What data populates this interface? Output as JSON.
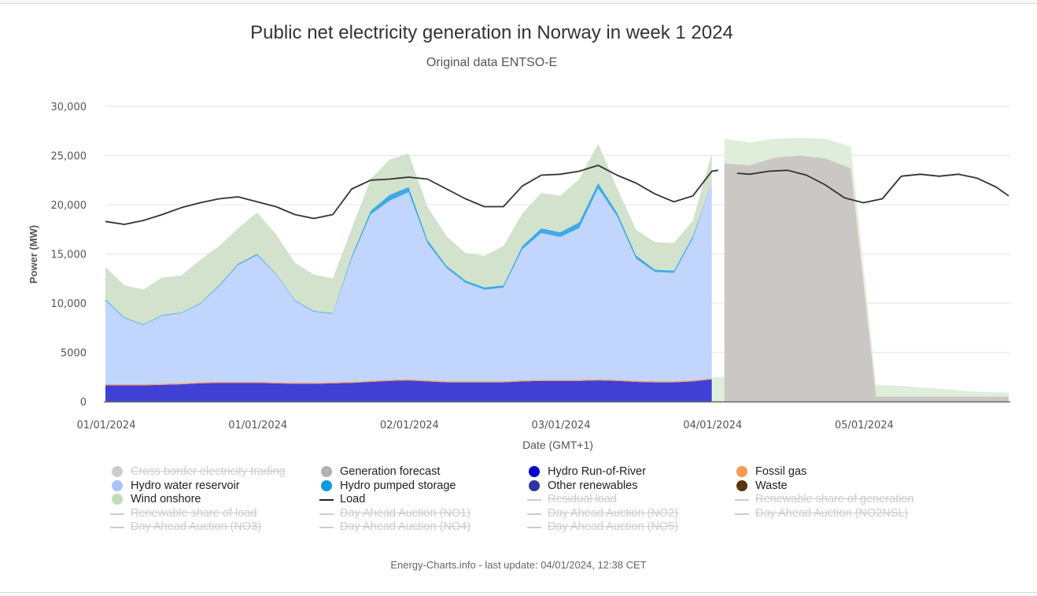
{
  "chart_data": {
    "type": "area",
    "title": "Public net electricity generation in Norway in week 1 2024",
    "subtitle": "Original data ENTSO-E",
    "xlabel": "Date (GMT+1)",
    "ylabel": "Power (MW)",
    "ylim": [
      0,
      30000
    ],
    "yticks": [
      {
        "value": 0,
        "label": "0"
      },
      {
        "value": 5000,
        "label": "5000"
      },
      {
        "value": 10000,
        "label": "10,000"
      },
      {
        "value": 15000,
        "label": "15,000"
      },
      {
        "value": 20000,
        "label": "20,000"
      },
      {
        "value": 25000,
        "label": "25,000"
      },
      {
        "value": 30000,
        "label": "30,000"
      }
    ],
    "x_unit": "hours since start of displayed range",
    "xlim": [
      0,
      143
    ],
    "xticks": [
      {
        "hour": 0,
        "label": "01/01/2024"
      },
      {
        "hour": 24,
        "label": "01/01/2024"
      },
      {
        "hour": 48,
        "label": "02/01/2024"
      },
      {
        "hour": 72,
        "label": "03/01/2024"
      },
      {
        "hour": 96,
        "label": "04/01/2024"
      },
      {
        "hour": 120,
        "label": "05/01/2024"
      }
    ],
    "grid": true,
    "legend_position": "bottom",
    "stacked_actual": {
      "hours": [
        0,
        3,
        6,
        9,
        12,
        15,
        18,
        21,
        24,
        27,
        30,
        33,
        36,
        39,
        42,
        45,
        48,
        51,
        54,
        57,
        60,
        63,
        66,
        69,
        72,
        75,
        78,
        81,
        84,
        87,
        90,
        93,
        96
      ],
      "series": [
        {
          "name": "Hydro Run-of-River",
          "color": "#4040d4",
          "values": [
            1650,
            1650,
            1650,
            1700,
            1750,
            1850,
            1900,
            1900,
            1900,
            1850,
            1800,
            1800,
            1850,
            1900,
            2000,
            2100,
            2150,
            2050,
            1950,
            1950,
            1950,
            1950,
            2050,
            2100,
            2100,
            2100,
            2150,
            2100,
            2000,
            1950,
            1950,
            2050,
            2250
          ]
        },
        {
          "name": "Fossil gas",
          "color": "#f4a470",
          "values": [
            120,
            120,
            120,
            120,
            120,
            120,
            120,
            120,
            120,
            120,
            120,
            120,
            120,
            120,
            120,
            120,
            120,
            120,
            120,
            120,
            120,
            120,
            120,
            120,
            120,
            120,
            120,
            120,
            120,
            120,
            120,
            120,
            120
          ]
        },
        {
          "name": "Hydro water reservoir",
          "color": "#c2d5fc",
          "values": [
            8500,
            6700,
            6000,
            6900,
            7100,
            7950,
            9700,
            11850,
            12850,
            10950,
            8300,
            7200,
            6950,
            12550,
            16900,
            18200,
            19000,
            13900,
            11500,
            10000,
            9300,
            9500,
            13300,
            14900,
            14500,
            15400,
            19400,
            16600,
            12400,
            11100,
            11000,
            14400,
            19900
          ]
        },
        {
          "name": "Hydro pumped storage",
          "color": "#3fa9e6",
          "values": [
            130,
            90,
            70,
            80,
            70,
            80,
            120,
            130,
            130,
            80,
            80,
            80,
            80,
            230,
            380,
            580,
            530,
            330,
            230,
            230,
            230,
            230,
            330,
            480,
            480,
            580,
            530,
            380,
            330,
            230,
            230,
            230,
            30
          ]
        },
        {
          "name": "Wind onshore",
          "color": "#d2e2cc",
          "values": [
            3300,
            3240,
            3560,
            3800,
            3760,
            4400,
            3960,
            3600,
            4200,
            4000,
            3800,
            3700,
            3500,
            2800,
            3200,
            3600,
            3400,
            3400,
            3000,
            2800,
            3200,
            4000,
            3300,
            3600,
            3700,
            4400,
            4000,
            2500,
            2600,
            2800,
            2800,
            1600,
            2900
          ]
        }
      ]
    },
    "forecast": {
      "name": "Generation forecast",
      "color": "#cbc7c5",
      "wind_forecast_color": "#dfeeda",
      "hours": [
        98,
        102,
        106,
        110,
        114,
        118,
        122,
        126,
        130,
        134,
        138,
        143
      ],
      "generation_forecast": [
        24200,
        24000,
        24800,
        25000,
        24700,
        23700,
        500,
        500,
        500,
        500,
        500,
        500
      ],
      "wind_onshore_forecast": [
        2500,
        2300,
        1900,
        1800,
        2000,
        2200,
        1200,
        1100,
        900,
        700,
        500,
        400
      ]
    },
    "load": {
      "name": "Load",
      "color": "#333333",
      "hours": [
        0,
        3,
        6,
        9,
        12,
        15,
        18,
        21,
        24,
        27,
        30,
        33,
        36,
        39,
        42,
        45,
        48,
        51,
        54,
        57,
        60,
        63,
        66,
        69,
        72,
        75,
        78,
        81,
        84,
        87,
        90,
        93,
        96,
        97,
        98,
        100,
        102,
        105,
        108,
        111,
        114,
        117,
        120,
        123,
        126,
        129,
        132,
        135,
        138,
        141,
        143
      ],
      "values": [
        18300,
        18000,
        18400,
        19000,
        19700,
        20200,
        20600,
        20800,
        20300,
        19800,
        19000,
        18600,
        19000,
        21600,
        22500,
        22600,
        22800,
        22600,
        21600,
        20600,
        19800,
        19800,
        21900,
        23000,
        23100,
        23400,
        24000,
        23000,
        22200,
        21100,
        20300,
        20900,
        23400,
        23500,
        null,
        23200,
        23100,
        23400,
        23500,
        23000,
        22000,
        20700,
        20200,
        20600,
        22900,
        23100,
        22900,
        23100,
        22700,
        21800,
        20900
      ]
    }
  },
  "legend": {
    "items": [
      {
        "label": "Cross border electricity trading",
        "symbol": "dot",
        "color": "#c8c8c8",
        "visible": false
      },
      {
        "label": "Generation forecast",
        "symbol": "dot",
        "color": "#b4b1b0",
        "visible": true
      },
      {
        "label": "Hydro Run-of-River",
        "symbol": "dot",
        "color": "#0000cc",
        "visible": true
      },
      {
        "label": "Fossil gas",
        "symbol": "dot",
        "color": "#f79a51",
        "visible": true
      },
      {
        "label": "Hydro water reservoir",
        "symbol": "dot",
        "color": "#a9c4fa",
        "visible": true
      },
      {
        "label": "Hydro pumped storage",
        "symbol": "dot",
        "color": "#0f9ae0",
        "visible": true
      },
      {
        "label": "Other renewables",
        "symbol": "dot",
        "color": "#33339e",
        "visible": true
      },
      {
        "label": "Waste",
        "symbol": "dot",
        "color": "#5a3410",
        "visible": true
      },
      {
        "label": "Wind onshore",
        "symbol": "dot",
        "color": "#c0ddb8",
        "visible": true
      },
      {
        "label": "Load",
        "symbol": "line",
        "color": "#222222",
        "visible": true
      },
      {
        "label": "Residual load",
        "symbol": "line",
        "color": "#cccccc",
        "visible": false
      },
      {
        "label": "Renewable share of generation",
        "symbol": "line",
        "color": "#cccccc",
        "visible": false
      },
      {
        "label": "Renewable share of load",
        "symbol": "line",
        "color": "#cccccc",
        "visible": false
      },
      {
        "label": "Day Ahead Auction (NO1)",
        "symbol": "line",
        "color": "#cccccc",
        "visible": false
      },
      {
        "label": "Day Ahead Auction (NO2)",
        "symbol": "line",
        "color": "#cccccc",
        "visible": false
      },
      {
        "label": "Day Ahead Auction (NO2NSL)",
        "symbol": "line",
        "color": "#cccccc",
        "visible": false
      },
      {
        "label": "Day Ahead Auction (NO3)",
        "symbol": "line",
        "color": "#cccccc",
        "visible": false
      },
      {
        "label": "Day Ahead Auction (NO4)",
        "symbol": "line",
        "color": "#cccccc",
        "visible": false
      },
      {
        "label": "Day Ahead Auction (NO5)",
        "symbol": "line",
        "color": "#cccccc",
        "visible": false
      }
    ]
  },
  "footer": "Energy-Charts.info - last update: 04/01/2024, 12:38 CET"
}
